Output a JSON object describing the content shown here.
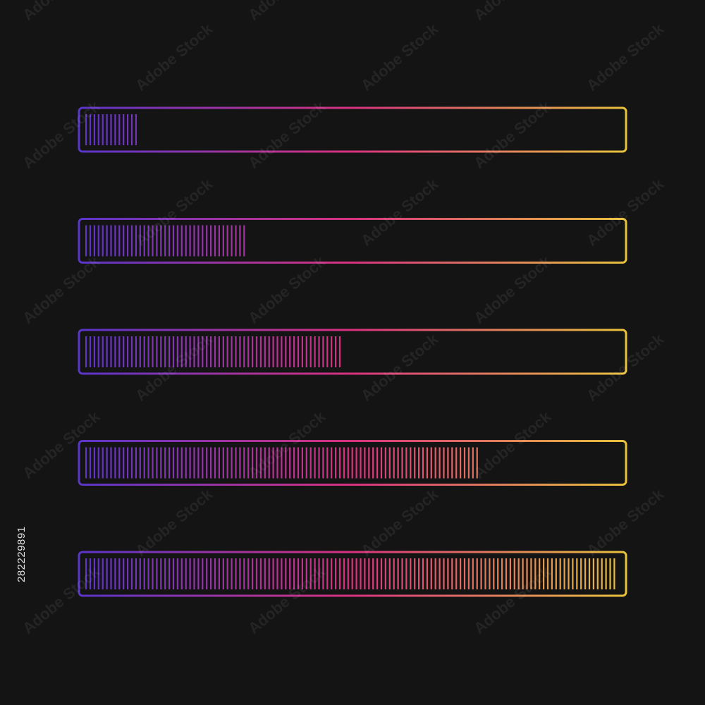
{
  "background": "#141415",
  "gradient": {
    "start": "#5a35c9",
    "middle": "#d8327f",
    "end": "#e8c23c"
  },
  "progress_bars": [
    {
      "label": "progress-bar-1",
      "progress": 0.1
    },
    {
      "label": "progress-bar-2",
      "progress": 0.3
    },
    {
      "label": "progress-bar-3",
      "progress": 0.48
    },
    {
      "label": "progress-bar-4",
      "progress": 0.74
    },
    {
      "label": "progress-bar-5",
      "progress": 1.0
    }
  ],
  "watermark": {
    "text": "Adobe Stock",
    "stock_id": "282229891"
  }
}
